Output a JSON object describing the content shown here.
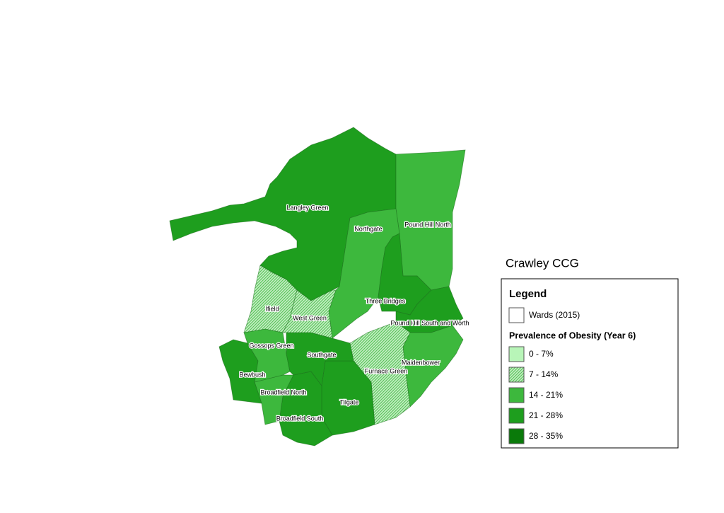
{
  "title": "Crawley CCG",
  "legend": {
    "title": "Legend",
    "layer_label": "Wards (2015)",
    "field_title": "Prevalence of Obesity (Year 6)",
    "classes": [
      {
        "label": "0 - 7%",
        "color": "#b8f5b8",
        "hatched": false
      },
      {
        "label": "7 - 14%",
        "color": "#5cc45c",
        "hatched": true
      },
      {
        "label": "14 - 21%",
        "color": "#3db83d",
        "hatched": false
      },
      {
        "label": "21 - 28%",
        "color": "#1e9e1e",
        "hatched": false
      },
      {
        "label": "28 - 35%",
        "color": "#0a7a0a",
        "hatched": false
      }
    ]
  },
  "wards": [
    "Langley Green",
    "Northgate",
    "Pound Hill North",
    "Three Bridges",
    "Pound Hill South and Worth",
    "Maidenbower",
    "Furnace Green",
    "Tilgate",
    "Broadfield South",
    "Broadfield North",
    "Bewbush",
    "Gossops Green",
    "Southgate",
    "Ifield",
    "West Green"
  ]
}
